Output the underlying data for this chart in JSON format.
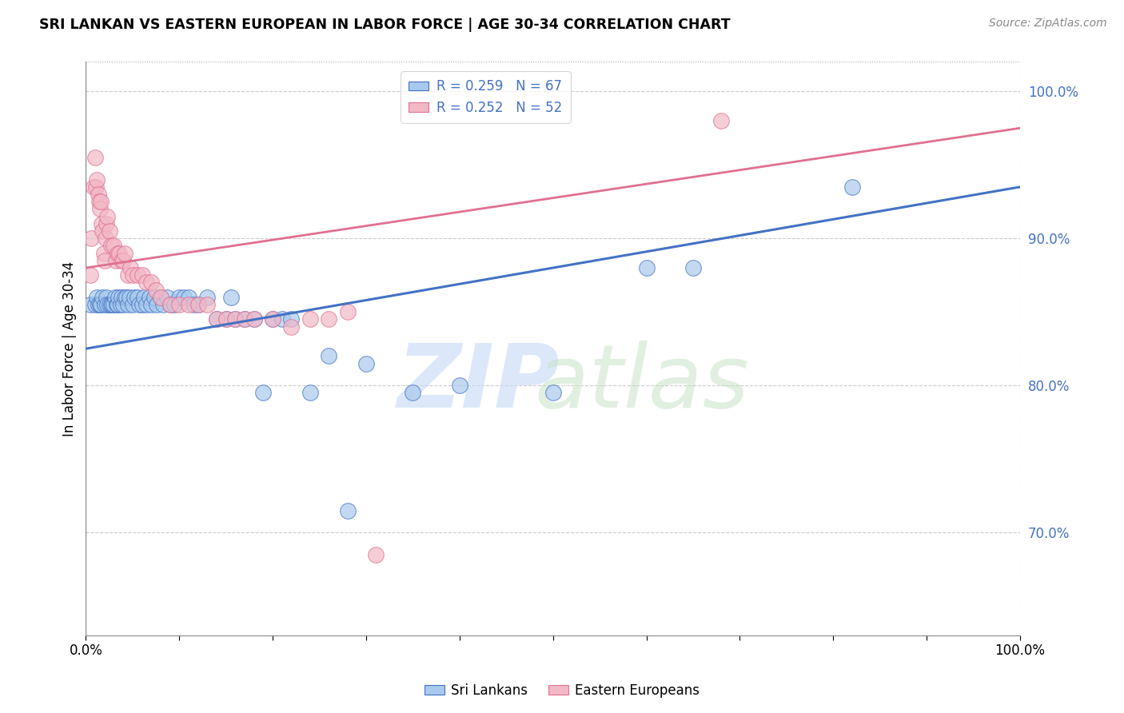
{
  "title": "SRI LANKAN VS EASTERN EUROPEAN IN LABOR FORCE | AGE 30-34 CORRELATION CHART",
  "source": "Source: ZipAtlas.com",
  "ylabel": "In Labor Force | Age 30-34",
  "legend_blue_label": "Sri Lankans",
  "legend_pink_label": "Eastern Europeans",
  "legend_blue_r": "R = 0.259",
  "legend_blue_n": "N = 67",
  "legend_pink_r": "R = 0.252",
  "legend_pink_n": "N = 52",
  "blue_color": "#a8caec",
  "pink_color": "#f2b8c6",
  "blue_line_color": "#4472c4",
  "pink_line_color": "#e07090",
  "xlim": [
    0.0,
    1.0
  ],
  "ylim": [
    0.63,
    1.02
  ],
  "yticks": [
    0.7,
    0.8,
    0.9,
    1.0
  ],
  "blue_x": [
    0.005,
    0.01,
    0.012,
    0.013,
    0.015,
    0.016,
    0.018,
    0.02,
    0.022,
    0.023,
    0.025,
    0.027,
    0.028,
    0.03,
    0.031,
    0.033,
    0.034,
    0.035,
    0.037,
    0.038,
    0.04,
    0.042,
    0.043,
    0.045,
    0.047,
    0.05,
    0.052,
    0.055,
    0.057,
    0.06,
    0.062,
    0.065,
    0.068,
    0.07,
    0.073,
    0.076,
    0.08,
    0.083,
    0.087,
    0.09,
    0.095,
    0.1,
    0.105,
    0.11,
    0.115,
    0.12,
    0.13,
    0.14,
    0.15,
    0.16,
    0.17,
    0.18,
    0.19,
    0.2,
    0.21,
    0.22,
    0.24,
    0.26,
    0.28,
    0.3,
    0.35,
    0.4,
    0.5,
    0.6,
    0.155,
    0.65,
    0.82
  ],
  "blue_y": [
    0.855,
    0.855,
    0.86,
    0.855,
    0.855,
    0.855,
    0.86,
    0.855,
    0.86,
    0.855,
    0.855,
    0.855,
    0.855,
    0.855,
    0.86,
    0.855,
    0.855,
    0.86,
    0.855,
    0.86,
    0.855,
    0.86,
    0.86,
    0.855,
    0.86,
    0.855,
    0.86,
    0.86,
    0.855,
    0.855,
    0.86,
    0.855,
    0.86,
    0.855,
    0.86,
    0.855,
    0.86,
    0.855,
    0.86,
    0.855,
    0.855,
    0.86,
    0.86,
    0.86,
    0.855,
    0.855,
    0.86,
    0.845,
    0.845,
    0.845,
    0.845,
    0.845,
    0.795,
    0.845,
    0.845,
    0.845,
    0.795,
    0.82,
    0.715,
    0.815,
    0.795,
    0.8,
    0.795,
    0.88,
    0.86,
    0.88,
    0.935
  ],
  "pink_x": [
    0.005,
    0.006,
    0.008,
    0.01,
    0.011,
    0.012,
    0.013,
    0.014,
    0.015,
    0.016,
    0.017,
    0.018,
    0.019,
    0.02,
    0.021,
    0.022,
    0.023,
    0.025,
    0.027,
    0.03,
    0.032,
    0.034,
    0.036,
    0.038,
    0.04,
    0.042,
    0.045,
    0.048,
    0.05,
    0.055,
    0.06,
    0.065,
    0.07,
    0.075,
    0.08,
    0.09,
    0.1,
    0.11,
    0.12,
    0.13,
    0.14,
    0.15,
    0.16,
    0.17,
    0.18,
    0.2,
    0.22,
    0.24,
    0.26,
    0.28,
    0.31,
    0.68
  ],
  "pink_y": [
    0.875,
    0.9,
    0.935,
    0.955,
    0.935,
    0.94,
    0.93,
    0.925,
    0.92,
    0.925,
    0.91,
    0.905,
    0.89,
    0.885,
    0.9,
    0.91,
    0.915,
    0.905,
    0.895,
    0.895,
    0.885,
    0.89,
    0.89,
    0.885,
    0.885,
    0.89,
    0.875,
    0.88,
    0.875,
    0.875,
    0.875,
    0.87,
    0.87,
    0.865,
    0.86,
    0.855,
    0.855,
    0.855,
    0.855,
    0.855,
    0.845,
    0.845,
    0.845,
    0.845,
    0.845,
    0.845,
    0.84,
    0.845,
    0.845,
    0.85,
    0.685,
    0.98
  ],
  "blue_trend_start_y": 0.825,
  "blue_trend_end_y": 0.935,
  "pink_trend_start_y": 0.88,
  "pink_trend_end_y": 0.975
}
